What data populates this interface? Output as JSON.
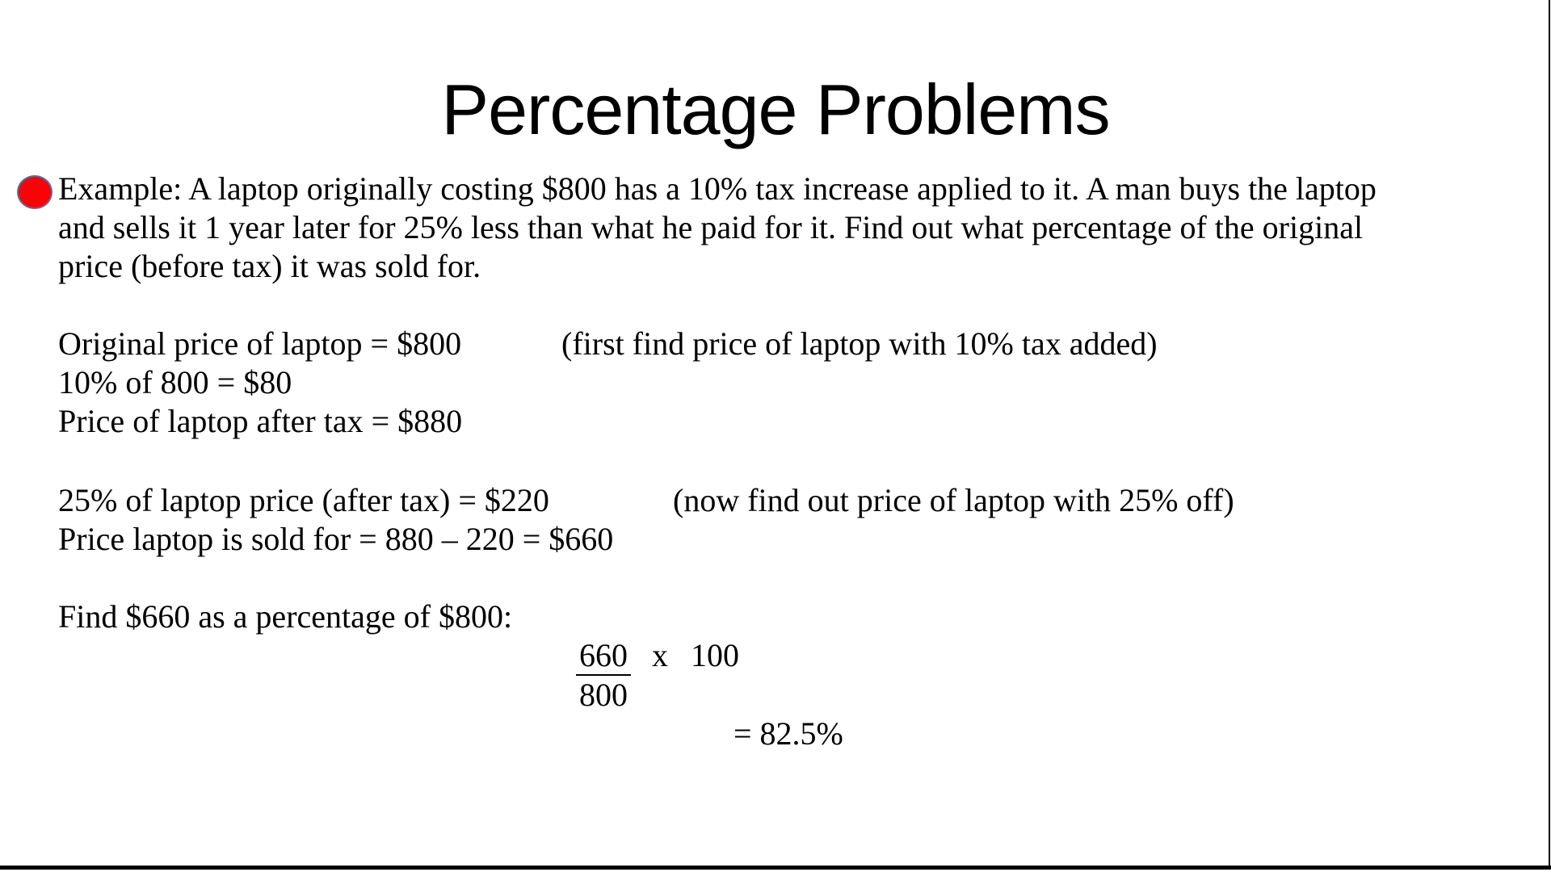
{
  "slide": {
    "title": "Percentage Problems",
    "problem": {
      "lines": [
        "Example: A laptop originally costing $800 has a 10% tax increase applied to it. A man buys the laptop",
        "and sells it 1 year later for 25% less than what he paid for it. Find out what percentage of the original",
        "price (before tax) it was sold for."
      ]
    },
    "working": {
      "tax_step": {
        "line1": "Original price of laptop = $800",
        "line1_note": "(first find price of laptop with 10% tax added)",
        "line2": "10% of 800 = $80",
        "line3": "Price of laptop after tax = $880"
      },
      "discount_step": {
        "line1": "25% of laptop price (after tax) = $220",
        "line1_note": "(now find out price of laptop with 25% off)",
        "line2": "Price laptop is sold for = 880 – 220 = $660"
      },
      "percentage_step": {
        "intro": "Find $660 as a percentage of $800:",
        "numerator": "660",
        "operator": "x",
        "multiplier": "100",
        "denominator": "800",
        "result": "= 82.5%"
      }
    },
    "colors": {
      "background": "#ffffff",
      "text": "#000000",
      "bullet_fill": "#fb0207",
      "bullet_border": "#5b6b9e",
      "edge_line": "#000000"
    }
  }
}
